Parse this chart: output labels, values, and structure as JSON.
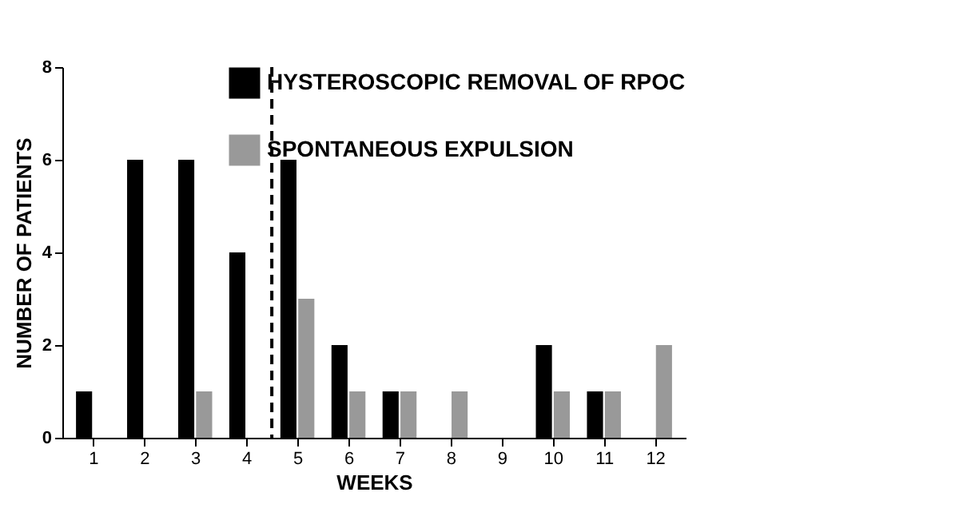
{
  "chart_data": {
    "type": "bar",
    "xlabel": "WEEKS",
    "ylabel": "NUMBER OF PATIENTS",
    "x": [
      1,
      2,
      3,
      4,
      5,
      6,
      7,
      8,
      9,
      10,
      11,
      12
    ],
    "series": [
      {
        "name": "HYSTEROSCOPIC REMOVAL OF RPOC",
        "color": "#000000",
        "values": [
          1,
          6,
          6,
          4,
          6,
          2,
          1,
          0,
          0,
          2,
          1,
          0
        ]
      },
      {
        "name": "SPONTANEOUS EXPULSION",
        "color": "#999999",
        "values": [
          0,
          0,
          1,
          0,
          3,
          1,
          1,
          1,
          0,
          1,
          1,
          2
        ]
      }
    ],
    "xlim": [
      0.4,
      12.6
    ],
    "xticks": [
      1,
      2,
      3,
      4,
      5,
      6,
      7,
      8,
      9,
      10,
      11,
      12
    ],
    "ylim": [
      0,
      8
    ],
    "yticks": [
      0,
      2,
      4,
      6,
      8
    ],
    "grid": false,
    "legend": "top right",
    "ref_lines": [
      {
        "axis": "x",
        "value": 4.5,
        "line_style": "dashed",
        "color": "#000000"
      }
    ]
  }
}
